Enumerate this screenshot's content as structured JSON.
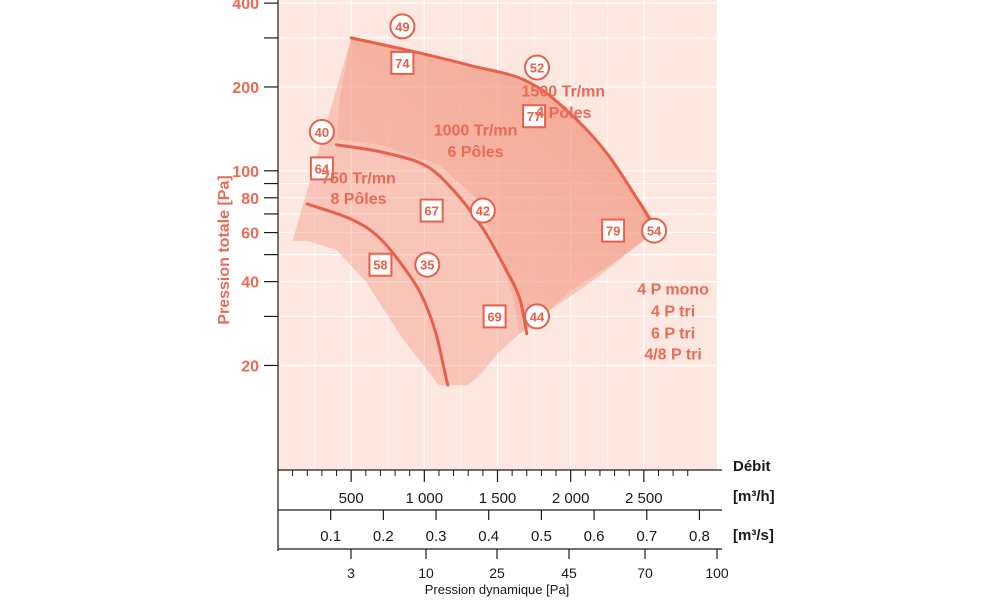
{
  "chart_data": {
    "type": "line",
    "title": "",
    "ylabel": "Pression totale [Pa]",
    "ylim": [
      17,
      490
    ],
    "y_scale": "log",
    "yticks": [
      {
        "value": 20,
        "label": "20"
      },
      {
        "value": 30,
        "label": ""
      },
      {
        "value": 40,
        "label": "40"
      },
      {
        "value": 50,
        "label": ""
      },
      {
        "value": 60,
        "label": "60"
      },
      {
        "value": 70,
        "label": ""
      },
      {
        "value": 80,
        "label": "80"
      },
      {
        "value": 90,
        "label": ""
      },
      {
        "value": 100,
        "label": "100"
      },
      {
        "value": 200,
        "label": "200"
      },
      {
        "value": 300,
        "label": ""
      },
      {
        "value": 400,
        "label": "400"
      }
    ],
    "x_axes": [
      {
        "label": "Débit",
        "unit": "[m³/h]",
        "ticks": [
          {
            "value": 500,
            "label": "500"
          },
          {
            "value": 1000,
            "label": "1 000"
          },
          {
            "value": 1500,
            "label": "1 500"
          },
          {
            "value": 2000,
            "label": "2 000"
          },
          {
            "value": 2500,
            "label": "2 500"
          }
        ]
      },
      {
        "label": "",
        "unit": "[m³/s]",
        "ticks": [
          {
            "value": 0.1,
            "label": "0.1"
          },
          {
            "value": 0.2,
            "label": "0.2"
          },
          {
            "value": 0.3,
            "label": "0.3"
          },
          {
            "value": 0.4,
            "label": "0.4"
          },
          {
            "value": 0.5,
            "label": "0.5"
          },
          {
            "value": 0.6,
            "label": "0.6"
          },
          {
            "value": 0.7,
            "label": "0.7"
          },
          {
            "value": 0.8,
            "label": "0.8"
          }
        ]
      },
      {
        "label": "Pression dynamique [Pa]",
        "unit": "",
        "ticks": [
          {
            "value": 3,
            "label": "3"
          },
          {
            "value": 10,
            "label": "10"
          },
          {
            "value": 25,
            "label": "25"
          },
          {
            "value": 45,
            "label": "45"
          },
          {
            "value": 70,
            "label": "70"
          },
          {
            "value": 100,
            "label": "100"
          }
        ]
      }
    ],
    "xlim": [
      0,
      3000
    ],
    "series": [
      {
        "labels": [
          "1500 Tr/mn",
          "4 Pôles"
        ],
        "points": [
          [
            500,
            300
          ],
          [
            900,
            270
          ],
          [
            1300,
            240
          ],
          [
            1700,
            210
          ],
          [
            2000,
            160
          ],
          [
            2250,
            115
          ],
          [
            2450,
            80
          ],
          [
            2580,
            62
          ]
        ]
      },
      {
        "labels": [
          "1000 Tr/mn",
          "6 Pôles"
        ],
        "points": [
          [
            400,
            124
          ],
          [
            700,
            117
          ],
          [
            1000,
            105
          ],
          [
            1200,
            85
          ],
          [
            1400,
            62
          ],
          [
            1550,
            45
          ],
          [
            1650,
            35
          ],
          [
            1700,
            26
          ]
        ]
      },
      {
        "labels": [
          "750 Tr/mn",
          "8 Pôles"
        ],
        "points": [
          [
            200,
            76
          ],
          [
            500,
            67
          ],
          [
            700,
            57
          ],
          [
            900,
            42
          ],
          [
            1000,
            34
          ],
          [
            1080,
            26
          ],
          [
            1130,
            20
          ],
          [
            1160,
            17
          ]
        ]
      }
    ],
    "envelopes": [
      {
        "points": [
          [
            100,
            56
          ],
          [
            500,
            300
          ],
          [
            1000,
            265
          ],
          [
            1500,
            225
          ],
          [
            1800,
            200
          ],
          [
            2050,
            150
          ],
          [
            2300,
            105
          ],
          [
            2500,
            75
          ],
          [
            2600,
            62
          ],
          [
            2200,
            42
          ],
          [
            1800,
            30
          ],
          [
            1650,
            26
          ],
          [
            1500,
            22
          ],
          [
            1400,
            19
          ],
          [
            1300,
            17
          ],
          [
            1100,
            17
          ],
          [
            850,
            25
          ],
          [
            600,
            40
          ],
          [
            400,
            52
          ],
          [
            200,
            56
          ]
        ]
      },
      {
        "points": [
          [
            500,
            300
          ],
          [
            1000,
            265
          ],
          [
            1500,
            225
          ],
          [
            1800,
            200
          ],
          [
            2050,
            150
          ],
          [
            2300,
            105
          ],
          [
            2500,
            75
          ],
          [
            2600,
            62
          ],
          [
            2300,
            47
          ],
          [
            2000,
            37
          ],
          [
            1800,
            30
          ],
          [
            1650,
            26
          ],
          [
            1600,
            36
          ],
          [
            1500,
            52
          ],
          [
            1350,
            80
          ],
          [
            1100,
            105
          ],
          [
            700,
            124
          ],
          [
            400,
            130
          ],
          [
            420,
            180
          ]
        ]
      }
    ],
    "markers": [
      {
        "shape": "circle",
        "label": "49",
        "x": 850,
        "y": 330
      },
      {
        "shape": "square",
        "label": "74",
        "x": 850,
        "y": 244
      },
      {
        "shape": "circle",
        "label": "52",
        "x": 1770,
        "y": 235
      },
      {
        "shape": "square",
        "label": "77",
        "x": 1750,
        "y": 157
      },
      {
        "shape": "circle",
        "label": "40",
        "x": 300,
        "y": 138
      },
      {
        "shape": "square",
        "label": "64",
        "x": 300,
        "y": 102
      },
      {
        "shape": "square",
        "label": "67",
        "x": 1050,
        "y": 72
      },
      {
        "shape": "circle",
        "label": "42",
        "x": 1400,
        "y": 72
      },
      {
        "shape": "square",
        "label": "79",
        "x": 2290,
        "y": 61
      },
      {
        "shape": "circle",
        "label": "54",
        "x": 2570,
        "y": 61
      },
      {
        "shape": "square",
        "label": "58",
        "x": 700,
        "y": 46
      },
      {
        "shape": "circle",
        "label": "35",
        "x": 1020,
        "y": 46
      },
      {
        "shape": "square",
        "label": "69",
        "x": 1480,
        "y": 30
      },
      {
        "shape": "circle",
        "label": "44",
        "x": 1770,
        "y": 30
      }
    ],
    "annotations": [
      {
        "text": "1500 Tr/mn",
        "x": 1950,
        "y": 185
      },
      {
        "text": "4 Pôles",
        "x": 1950,
        "y": 155
      },
      {
        "text": "1000 Tr/mn",
        "x": 1350,
        "y": 134
      },
      {
        "text": "6 Pôles",
        "x": 1350,
        "y": 112
      },
      {
        "text": "750 Tr/mn",
        "x": 550,
        "y": 90
      },
      {
        "text": "8 Pôles",
        "x": 550,
        "y": 76
      },
      {
        "text": "4 P mono",
        "x": 2700,
        "y": 36
      },
      {
        "text": "4 P tri",
        "x": 2700,
        "y": 30
      },
      {
        "text": "6 P tri",
        "x": 2700,
        "y": 25
      },
      {
        "text": "4/8 P tri",
        "x": 2700,
        "y": 21
      }
    ],
    "grid": true,
    "legend": "none",
    "colors": {
      "plot_bg": "#fce8e1",
      "envelope": "#f0846c",
      "curve": "#e8604a",
      "marker_border": "#e8604a",
      "marker_fill": "#ffffff",
      "axis_label": "#ea6a55",
      "axis": "#1a1a1a",
      "grid": "#ffffff"
    }
  }
}
